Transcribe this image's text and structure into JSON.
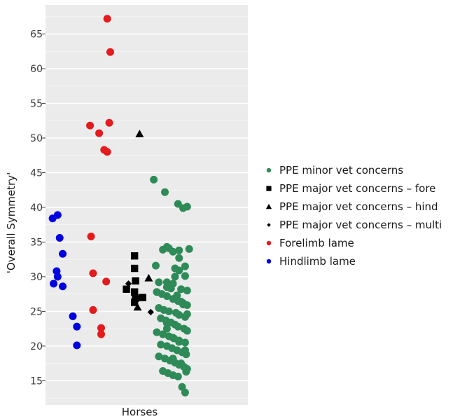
{
  "chart_data": {
    "type": "scatter",
    "title": "",
    "xlabel": "Horses",
    "ylabel": "'Overall Symmetry'",
    "ylim": [
      11.5,
      69.2
    ],
    "yticks": [
      15,
      20,
      25,
      30,
      35,
      40,
      45,
      50,
      55,
      60,
      65
    ],
    "grid": true,
    "legend_position": "right",
    "series": [
      {
        "name": "PPE minor vet concerns",
        "marker": "circle",
        "color": "#2e8b57",
        "jitter": [
          0.535,
          0.59,
          0.655,
          0.7,
          0.68,
          0.61,
          0.66,
          0.71,
          0.58,
          0.545,
          0.64,
          0.66,
          0.69,
          0.6,
          0.63,
          0.67,
          0.7,
          0.55,
          0.575,
          0.6,
          0.63,
          0.655,
          0.68,
          0.7,
          0.56,
          0.585,
          0.61,
          0.645,
          0.66,
          0.69,
          0.57,
          0.595,
          0.62,
          0.64,
          0.655,
          0.685,
          0.7,
          0.55,
          0.58,
          0.61,
          0.635,
          0.66,
          0.69,
          0.57,
          0.6,
          0.625,
          0.65,
          0.675,
          0.695,
          0.56,
          0.59,
          0.615,
          0.64,
          0.66,
          0.685,
          0.7,
          0.58,
          0.605,
          0.63,
          0.655,
          0.675,
          0.69,
          0.6,
          0.63,
          0.66,
          0.69,
          0.6,
          0.62,
          0.65,
          0.68,
          0.7,
          0.6,
          0.63,
          0.66,
          0.69,
          0.63,
          0.67,
          0.695,
          0.64,
          0.67,
          0.56,
          0.6
        ],
        "values": [
          44.0,
          42.2,
          40.5,
          40.1,
          39.9,
          34.1,
          33.8,
          34.0,
          33.9,
          31.6,
          31.2,
          30.9,
          30.1,
          29.2,
          29.0,
          28.2,
          28.0,
          27.8,
          27.5,
          27.2,
          26.8,
          26.5,
          26.2,
          25.9,
          25.5,
          25.2,
          25.0,
          24.8,
          24.5,
          24.2,
          24.0,
          23.7,
          23.4,
          23.1,
          22.8,
          22.5,
          22.2,
          22.0,
          21.7,
          21.4,
          21.1,
          20.8,
          20.5,
          20.2,
          20.0,
          19.7,
          19.4,
          19.1,
          18.8,
          18.5,
          18.2,
          17.9,
          17.6,
          17.3,
          17.0,
          16.7,
          16.4,
          16.1,
          15.8,
          15.6,
          14.1,
          13.3,
          34.3,
          33.6,
          32.7,
          31.5,
          28.5,
          28.3,
          27.3,
          26.0,
          24.6,
          23.3,
          21.2,
          20.6,
          19.4,
          18.2,
          17.5,
          16.3,
          30.0,
          26.4,
          29.2,
          22.5
        ]
      },
      {
        "name": "PPE major vet concerns – fore",
        "marker": "square",
        "color": "#000000",
        "jitter": [
          0.44,
          0.44,
          0.445,
          0.4,
          0.44,
          0.445,
          0.44,
          0.48
        ],
        "values": [
          33.0,
          31.2,
          29.4,
          28.2,
          27.8,
          26.9,
          26.3,
          27.0
        ]
      },
      {
        "name": "PPE major vet concerns – hind",
        "marker": "triangle",
        "color": "#000000",
        "jitter": [
          0.465,
          0.455,
          0.51
        ],
        "values": [
          50.6,
          25.6,
          29.8
        ]
      },
      {
        "name": "PPE major vet concerns – multi",
        "marker": "diamond",
        "color": "#000000",
        "jitter": [
          0.41,
          0.52
        ],
        "values": [
          29.0,
          24.9
        ]
      },
      {
        "name": "Forelimb lame",
        "marker": "circle",
        "color": "#e41a1c",
        "jitter": [
          0.305,
          0.32,
          0.22,
          0.265,
          0.315,
          0.29,
          0.305,
          0.225,
          0.235,
          0.3,
          0.235,
          0.275,
          0.275
        ],
        "values": [
          67.2,
          62.4,
          51.8,
          50.7,
          52.2,
          48.3,
          48.0,
          35.8,
          30.5,
          29.3,
          25.2,
          22.6,
          21.7
        ]
      },
      {
        "name": "Hindlimb lame",
        "marker": "circle",
        "color": "#0000e0",
        "jitter": [
          0.06,
          0.035,
          0.07,
          0.085,
          0.055,
          0.06,
          0.04,
          0.085,
          0.135,
          0.155,
          0.155
        ],
        "values": [
          38.9,
          38.4,
          35.6,
          33.3,
          30.8,
          30.0,
          29.0,
          28.6,
          24.3,
          22.8,
          20.1
        ]
      }
    ]
  }
}
